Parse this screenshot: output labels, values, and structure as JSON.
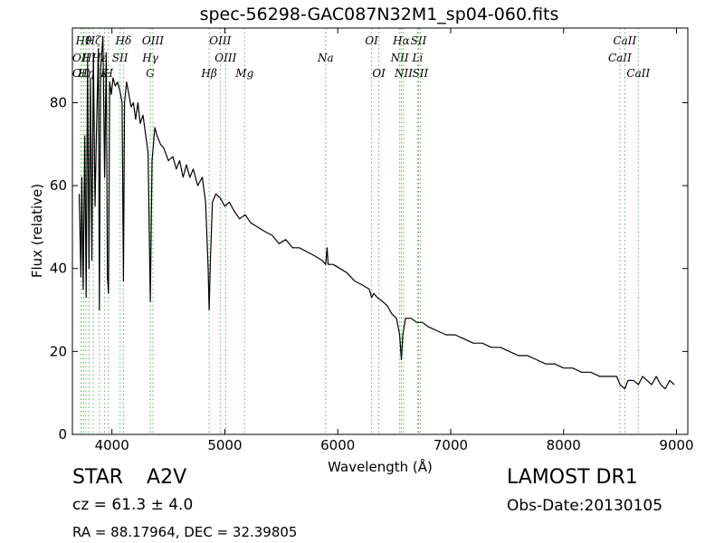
{
  "chart_data": {
    "type": "line",
    "title": "spec-56298-GAC087N32M1_sp04-060.fits",
    "xlabel": "Wavelength (Å)",
    "ylabel": "Flux (relative)",
    "xlim": [
      3650,
      9100
    ],
    "ylim": [
      0,
      98
    ],
    "xticks": [
      4000,
      5000,
      6000,
      7000,
      8000,
      9000
    ],
    "yticks": [
      0,
      20,
      40,
      60,
      80
    ],
    "grid": false,
    "series": [
      {
        "color": "#000000",
        "points": [
          [
            3710,
            58
          ],
          [
            3725,
            38
          ],
          [
            3733,
            62
          ],
          [
            3745,
            35
          ],
          [
            3760,
            72
          ],
          [
            3772,
            33
          ],
          [
            3785,
            90
          ],
          [
            3797,
            40
          ],
          [
            3810,
            86
          ],
          [
            3822,
            42
          ],
          [
            3836,
            92
          ],
          [
            3850,
            55
          ],
          [
            3862,
            72
          ],
          [
            3880,
            93
          ],
          [
            3889,
            30
          ],
          [
            3900,
            88
          ],
          [
            3920,
            96
          ],
          [
            3935,
            62
          ],
          [
            3950,
            92
          ],
          [
            3960,
            38
          ],
          [
            3970,
            34
          ],
          [
            3980,
            85
          ],
          [
            3995,
            82
          ],
          [
            4010,
            86
          ],
          [
            4030,
            84
          ],
          [
            4050,
            85
          ],
          [
            4070,
            83
          ],
          [
            4090,
            80
          ],
          [
            4102,
            37
          ],
          [
            4112,
            80
          ],
          [
            4130,
            85
          ],
          [
            4150,
            82
          ],
          [
            4170,
            79
          ],
          [
            4190,
            80
          ],
          [
            4210,
            76
          ],
          [
            4230,
            80
          ],
          [
            4250,
            75
          ],
          [
            4275,
            77
          ],
          [
            4300,
            72
          ],
          [
            4320,
            68
          ],
          [
            4340,
            32
          ],
          [
            4355,
            66
          ],
          [
            4380,
            74
          ],
          [
            4400,
            72
          ],
          [
            4430,
            70
          ],
          [
            4460,
            69
          ],
          [
            4500,
            66
          ],
          [
            4540,
            67
          ],
          [
            4570,
            64
          ],
          [
            4600,
            66
          ],
          [
            4630,
            62
          ],
          [
            4660,
            65
          ],
          [
            4690,
            62
          ],
          [
            4720,
            64
          ],
          [
            4760,
            60
          ],
          [
            4800,
            62
          ],
          [
            4830,
            56
          ],
          [
            4852,
            40
          ],
          [
            4861,
            30
          ],
          [
            4872,
            42
          ],
          [
            4890,
            56
          ],
          [
            4920,
            58
          ],
          [
            4960,
            57
          ],
          [
            5000,
            55
          ],
          [
            5040,
            56
          ],
          [
            5080,
            54
          ],
          [
            5130,
            52
          ],
          [
            5180,
            53
          ],
          [
            5230,
            51
          ],
          [
            5290,
            50
          ],
          [
            5350,
            49
          ],
          [
            5420,
            48
          ],
          [
            5480,
            46
          ],
          [
            5540,
            47
          ],
          [
            5600,
            45
          ],
          [
            5660,
            45
          ],
          [
            5730,
            44
          ],
          [
            5800,
            43
          ],
          [
            5860,
            42
          ],
          [
            5893,
            41
          ],
          [
            5905,
            45
          ],
          [
            5915,
            41
          ],
          [
            5960,
            41
          ],
          [
            6020,
            40
          ],
          [
            6080,
            39
          ],
          [
            6150,
            37
          ],
          [
            6220,
            36
          ],
          [
            6280,
            35
          ],
          [
            6300,
            33
          ],
          [
            6320,
            34
          ],
          [
            6350,
            33
          ],
          [
            6400,
            32
          ],
          [
            6440,
            31
          ],
          [
            6480,
            29
          ],
          [
            6520,
            28
          ],
          [
            6548,
            24
          ],
          [
            6563,
            18
          ],
          [
            6576,
            24
          ],
          [
            6600,
            28
          ],
          [
            6650,
            28
          ],
          [
            6700,
            27
          ],
          [
            6750,
            27
          ],
          [
            6800,
            26
          ],
          [
            6880,
            25
          ],
          [
            6960,
            24
          ],
          [
            7040,
            24
          ],
          [
            7120,
            23
          ],
          [
            7200,
            22
          ],
          [
            7280,
            22
          ],
          [
            7360,
            21
          ],
          [
            7440,
            21
          ],
          [
            7520,
            20
          ],
          [
            7600,
            19
          ],
          [
            7680,
            19
          ],
          [
            7760,
            18
          ],
          [
            7840,
            17
          ],
          [
            7920,
            17
          ],
          [
            8000,
            16
          ],
          [
            8080,
            16
          ],
          [
            8160,
            15
          ],
          [
            8240,
            15
          ],
          [
            8320,
            14
          ],
          [
            8400,
            14
          ],
          [
            8470,
            14
          ],
          [
            8500,
            12
          ],
          [
            8542,
            11
          ],
          [
            8570,
            13
          ],
          [
            8620,
            13
          ],
          [
            8662,
            12
          ],
          [
            8700,
            14
          ],
          [
            8740,
            13
          ],
          [
            8780,
            12
          ],
          [
            8820,
            14
          ],
          [
            8860,
            12
          ],
          [
            8900,
            11
          ],
          [
            8940,
            13
          ],
          [
            8980,
            12
          ]
        ]
      }
    ],
    "line_markers": [
      {
        "x": 3727,
        "label": "OII",
        "row": 1
      },
      {
        "x": 3727,
        "label": "OII",
        "row": 2
      },
      {
        "x": 3750,
        "label": "Hθ",
        "row": 0
      },
      {
        "x": 3771,
        "label": "Hη",
        "row": 2
      },
      {
        "x": 3798,
        "label": "Hι",
        "row": 1
      },
      {
        "x": 3835,
        "label": "Hζ",
        "row": 0
      },
      {
        "x": 3889,
        "label": "Hε",
        "row": 1
      },
      {
        "x": 3934,
        "label": "K",
        "row": 2
      },
      {
        "x": 3969,
        "label": "H",
        "row": 2
      },
      {
        "x": 4072,
        "label": "SII",
        "row": 1
      },
      {
        "x": 4102,
        "label": "Hδ",
        "row": 0
      },
      {
        "x": 4340,
        "label": "Hγ",
        "row": 1
      },
      {
        "x": 4340,
        "label": "G",
        "row": 2
      },
      {
        "x": 4363,
        "label": "OIII",
        "row": 0
      },
      {
        "x": 4861,
        "label": "Hβ",
        "row": 2
      },
      {
        "x": 4959,
        "label": "OIII",
        "row": 0
      },
      {
        "x": 5007,
        "label": "OIII",
        "row": 1
      },
      {
        "x": 5175,
        "label": "Mg",
        "row": 2
      },
      {
        "x": 5893,
        "label": "Na",
        "row": 1
      },
      {
        "x": 6300,
        "label": "OI",
        "row": 0
      },
      {
        "x": 6364,
        "label": "OI",
        "row": 2
      },
      {
        "x": 6548,
        "label": "NII",
        "row": 1
      },
      {
        "x": 6563,
        "label": "Hα",
        "row": 0
      },
      {
        "x": 6583,
        "label": "NII",
        "row": 2
      },
      {
        "x": 6707,
        "label": "Li",
        "row": 1
      },
      {
        "x": 6716,
        "label": "SII",
        "row": 0
      },
      {
        "x": 6731,
        "label": "SII",
        "row": 2
      },
      {
        "x": 8498,
        "label": "CaII",
        "row": 1
      },
      {
        "x": 8542,
        "label": "CaII",
        "row": 0
      },
      {
        "x": 8662,
        "label": "CaII",
        "row": 2
      }
    ]
  },
  "info": {
    "object_class": "STAR",
    "subclass": "A2V",
    "survey": "LAMOST DR1",
    "cz": "cz = 61.3 ± 4.0",
    "obs_date": "Obs-Date:20130105",
    "coords": "RA = 88.17964, DEC = 32.39805"
  }
}
